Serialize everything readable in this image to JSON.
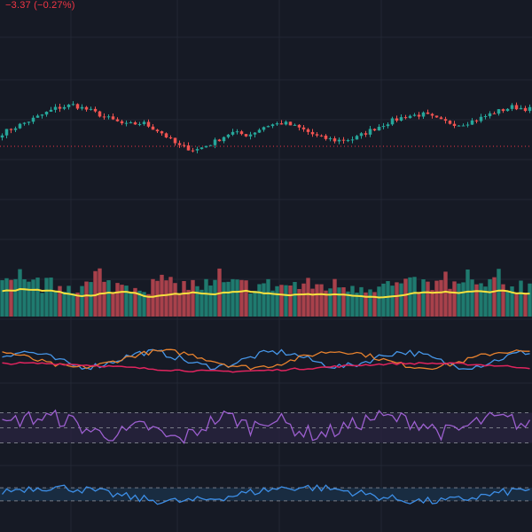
{
  "header": {
    "change_text": "−3.37 (−0.27%)"
  },
  "colors": {
    "background": "#161a25",
    "grid": "#222734",
    "up": "#26a69a",
    "down": "#ef5350",
    "volume_up": "#1f7a6f",
    "volume_down": "#a8414b",
    "volume_ma": "#f7e13e",
    "price_line": "#f23645",
    "line_blue": "#4696e8",
    "line_orange": "#e8822e",
    "line_red": "#e0245e",
    "rsi_line": "#9c5fcf",
    "rsi_fill": "#2a2440",
    "rsi_band": "#787b86",
    "osc_line": "#3d8ee6",
    "osc_fill": "#1a2f45"
  },
  "chart_data": [
    {
      "type": "candlestick",
      "panel": "price",
      "bars": 120,
      "price_range": [
        85,
        115
      ],
      "close_path": [
        100,
        101.5,
        103,
        104.6,
        105.3,
        104.2,
        102.8,
        101.5,
        101.9,
        100.2,
        97.6,
        96.8,
        98.2,
        100.1,
        99.6,
        101.4,
        101.9,
        100.8,
        99.2,
        98.6,
        98.9,
        100.6,
        102.1,
        103.2,
        103.5,
        102.2,
        101.6,
        102.5,
        103.9,
        104.9,
        104.5
      ],
      "last_price_line": 97.5
    },
    {
      "type": "bar",
      "panel": "volume",
      "bars": 120,
      "value_range": [
        0,
        100
      ],
      "moving_average": true
    },
    {
      "type": "line",
      "panel": "multi-line",
      "series_count": 3,
      "value_range": [
        0,
        100
      ]
    },
    {
      "type": "line",
      "panel": "rsi",
      "value_range": [
        0,
        100
      ],
      "bands": [
        30,
        50,
        70
      ]
    },
    {
      "type": "area",
      "panel": "oscillator",
      "value_range": [
        -100,
        100
      ],
      "bands": [
        -33,
        33
      ]
    }
  ]
}
